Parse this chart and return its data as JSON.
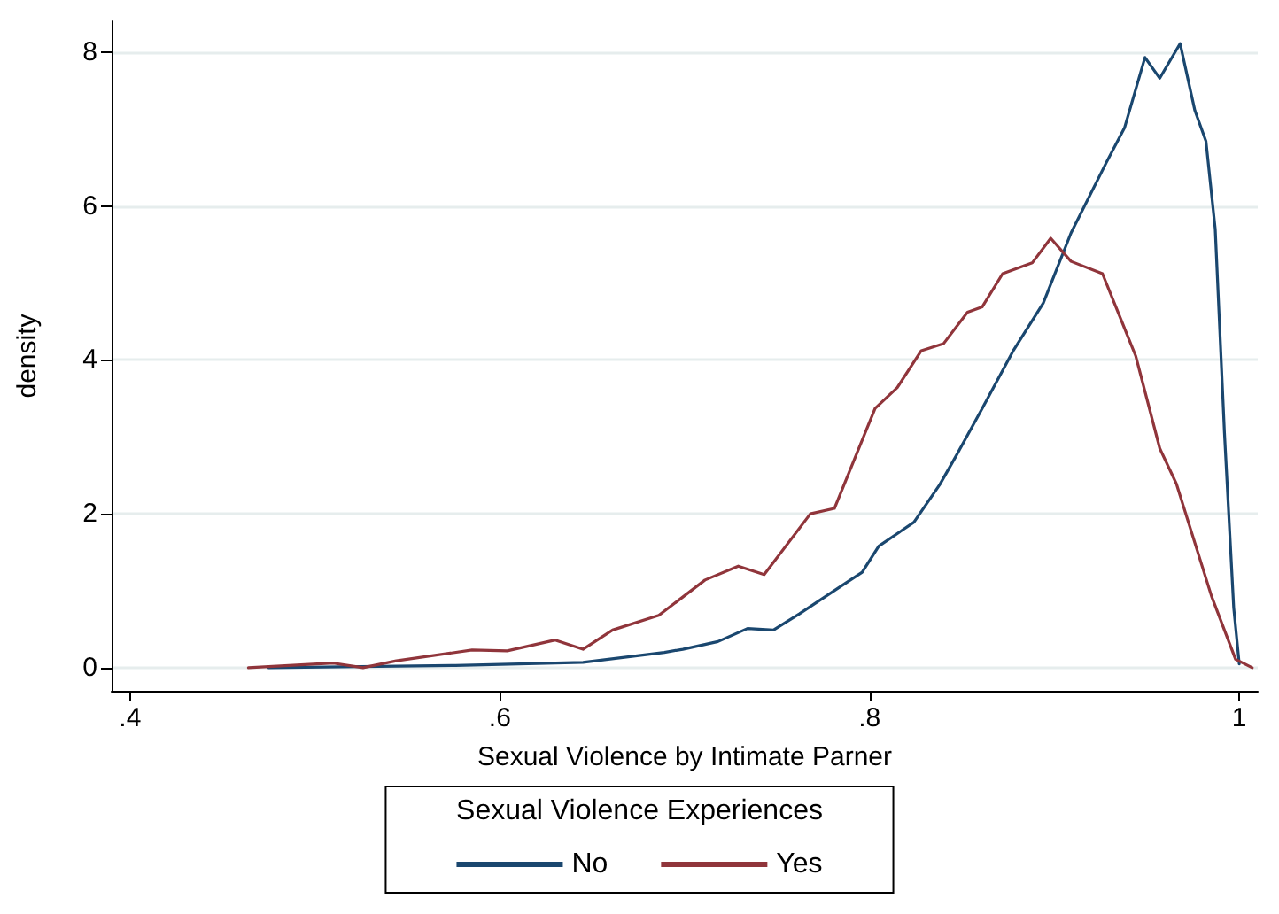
{
  "chart_data": {
    "type": "line",
    "xlabel": "Sexual Violence by Intimate Parner",
    "ylabel": "density",
    "legend_title": "Sexual Violence Experiences",
    "legend": "bottom",
    "grid": "y",
    "marker": "none",
    "line_style": "solid",
    "xlim": [
      0.39,
      1.01
    ],
    "ylim": [
      -0.3,
      8.4
    ],
    "xticks": [
      {
        "value": 0.4,
        "label": ".4"
      },
      {
        "value": 0.6,
        "label": ".6"
      },
      {
        "value": 0.8,
        "label": ".8"
      },
      {
        "value": 1,
        "label": "1"
      }
    ],
    "yticks": [
      0,
      2,
      4,
      6,
      8
    ],
    "series": [
      {
        "name": "No",
        "color": "#1a476f",
        "x": [
          0.475,
          0.576,
          0.645,
          0.689,
          0.699,
          0.718,
          0.734,
          0.748,
          0.762,
          0.784,
          0.796,
          0.805,
          0.824,
          0.838,
          0.847,
          0.861,
          0.878,
          0.894,
          0.909,
          0.928,
          0.938,
          0.949,
          0.957,
          0.968,
          0.976,
          0.982,
          0.987,
          0.992,
          0.997,
          1.0
        ],
        "values": [
          0,
          0.03,
          0.07,
          0.2,
          0.24,
          0.34,
          0.51,
          0.49,
          0.7,
          1.05,
          1.24,
          1.58,
          1.89,
          2.38,
          2.76,
          3.37,
          4.13,
          4.74,
          5.65,
          6.56,
          7.02,
          7.93,
          7.66,
          8.11,
          7.24,
          6.84,
          5.7,
          3.05,
          0.78,
          0.05
        ]
      },
      {
        "name": "Yes",
        "color": "#90353b",
        "x": [
          0.464,
          0.51,
          0.526,
          0.544,
          0.585,
          0.604,
          0.63,
          0.645,
          0.661,
          0.686,
          0.711,
          0.729,
          0.743,
          0.768,
          0.781,
          0.803,
          0.815,
          0.828,
          0.84,
          0.853,
          0.861,
          0.872,
          0.888,
          0.898,
          0.909,
          0.926,
          0.944,
          0.957,
          0.966,
          0.985,
          0.998,
          1.007
        ],
        "values": [
          0,
          0.06,
          0,
          0.09,
          0.23,
          0.22,
          0.36,
          0.24,
          0.49,
          0.68,
          1.14,
          1.32,
          1.21,
          2.0,
          2.07,
          3.37,
          3.64,
          4.12,
          4.21,
          4.62,
          4.69,
          5.12,
          5.26,
          5.58,
          5.28,
          5.12,
          4.05,
          2.85,
          2.39,
          0.93,
          0.11,
          0
        ]
      }
    ]
  }
}
